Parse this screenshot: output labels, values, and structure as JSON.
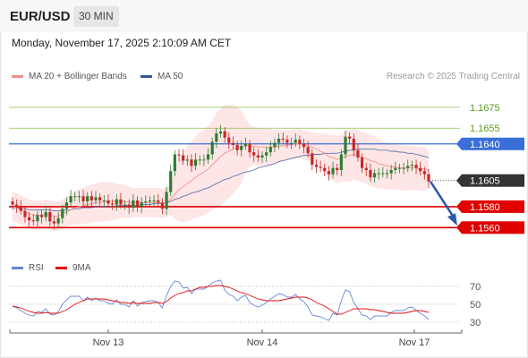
{
  "header": {
    "symbol": "EUR/USD",
    "timeframe": "30 MIN"
  },
  "datetime": "Monday, November 17, 2025 2:10:09 AM CET",
  "legend": {
    "items": [
      {
        "label": "MA 20 + Bollinger Bands",
        "color": "#f28e8e"
      },
      {
        "label": "MA 50",
        "color": "#34569e"
      }
    ],
    "rsi_items": [
      {
        "label": "RSI",
        "color": "#6a87d6"
      },
      {
        "label": "9MA",
        "color": "#e01010"
      }
    ]
  },
  "research": "Research © 2025 Trading Central",
  "colors": {
    "up": "#2e7d32",
    "down": "#c62828",
    "resistance": "#8bc34a",
    "pivot": "#3a6fd8",
    "support": "#e00000",
    "current": "#333333",
    "arrow": "#2b5aa8",
    "band": "#fdd9d9"
  },
  "chart_data": [
    {
      "type": "candlestick",
      "price_range": [
        1.1538,
        1.1692
      ],
      "x_labels": [
        "Nov 13",
        "Nov 14",
        "Nov 17"
      ],
      "levels": [
        {
          "value": "1.1675",
          "kind": "resistance"
        },
        {
          "value": "1.1655",
          "kind": "resistance"
        },
        {
          "value": "1.1640",
          "kind": "pivot"
        },
        {
          "value": "1.1605",
          "kind": "current"
        },
        {
          "value": "1.1580",
          "kind": "support"
        },
        {
          "value": "1.1560",
          "kind": "support"
        }
      ],
      "forecast_arrow": {
        "from": 1.1604,
        "to": 1.156
      },
      "close": [
        1.1582,
        1.158,
        1.1576,
        1.157,
        1.1567,
        1.1566,
        1.1572,
        1.157,
        1.1575,
        1.1566,
        1.1564,
        1.1569,
        1.1578,
        1.1584,
        1.159,
        1.159,
        1.159,
        1.1585,
        1.159,
        1.1586,
        1.1589,
        1.1586,
        1.1586,
        1.1583,
        1.1582,
        1.1587,
        1.1582,
        1.1582,
        1.1579,
        1.1586,
        1.158,
        1.1584,
        1.1585,
        1.1586,
        1.1586,
        1.1584,
        1.1578,
        1.1594,
        1.1614,
        1.163,
        1.1629,
        1.1624,
        1.1625,
        1.1619,
        1.1625,
        1.1625,
        1.1625,
        1.163,
        1.1642,
        1.165,
        1.1652,
        1.1646,
        1.1641,
        1.1639,
        1.1634,
        1.1638,
        1.164,
        1.1632,
        1.1629,
        1.1627,
        1.1629,
        1.1632,
        1.1637,
        1.1641,
        1.1645,
        1.1644,
        1.1641,
        1.1641,
        1.1644,
        1.164,
        1.1637,
        1.1631,
        1.162,
        1.1618,
        1.1617,
        1.1614,
        1.1611,
        1.1617,
        1.1615,
        1.163,
        1.1647,
        1.1645,
        1.1634,
        1.1627,
        1.1617,
        1.1615,
        1.1608,
        1.1612,
        1.1612,
        1.1612,
        1.1612,
        1.1615,
        1.1617,
        1.1617,
        1.1617,
        1.1619,
        1.162,
        1.1617,
        1.1614,
        1.1611,
        1.1604
      ],
      "ma20": [
        1.158,
        1.1579,
        1.1577,
        1.1575,
        1.1573,
        1.1572,
        1.1572,
        1.1572,
        1.1573,
        1.1572,
        1.1571,
        1.1571,
        1.1573,
        1.1575,
        1.1577,
        1.1579,
        1.158,
        1.1581,
        1.1582,
        1.1583,
        1.1584,
        1.1584,
        1.1585,
        1.1585,
        1.1585,
        1.1585,
        1.1585,
        1.1585,
        1.1584,
        1.1584,
        1.1584,
        1.1584,
        1.1584,
        1.1584,
        1.1584,
        1.1584,
        1.1583,
        1.1584,
        1.1587,
        1.1592,
        1.1596,
        1.1599,
        1.1602,
        1.1605,
        1.1608,
        1.1611,
        1.1613,
        1.1616,
        1.162,
        1.1624,
        1.1628,
        1.1631,
        1.1633,
        1.1635,
        1.1636,
        1.1637,
        1.1638,
        1.1638,
        1.1638,
        1.1637,
        1.1637,
        1.1637,
        1.1637,
        1.1637,
        1.1638,
        1.1638,
        1.1639,
        1.1639,
        1.164,
        1.164,
        1.1639,
        1.1638,
        1.1637,
        1.1635,
        1.1633,
        1.1631,
        1.1628,
        1.1627,
        1.1625,
        1.1626,
        1.1628,
        1.1629,
        1.163,
        1.1629,
        1.1627,
        1.1626,
        1.1624,
        1.1623,
        1.1621,
        1.162,
        1.1619,
        1.1618,
        1.1618,
        1.1617,
        1.1617,
        1.1617,
        1.1617,
        1.1617,
        1.1616,
        1.1616,
        1.1615
      ],
      "ma50": [
        1.1579,
        1.1579,
        1.1578,
        1.1578,
        1.1577,
        1.1577,
        1.1577,
        1.1577,
        1.1577,
        1.1577,
        1.1576,
        1.1576,
        1.1576,
        1.1577,
        1.1577,
        1.1578,
        1.1578,
        1.1579,
        1.1579,
        1.1579,
        1.158,
        1.158,
        1.158,
        1.158,
        1.158,
        1.1581,
        1.1581,
        1.1581,
        1.1581,
        1.1581,
        1.1581,
        1.1582,
        1.1582,
        1.1582,
        1.1583,
        1.1583,
        1.1583,
        1.1584,
        1.1585,
        1.1587,
        1.1588,
        1.159,
        1.1591,
        1.1593,
        1.1594,
        1.1595,
        1.1597,
        1.1598,
        1.16,
        1.1602,
        1.1604,
        1.1606,
        1.1607,
        1.1609,
        1.161,
        1.1612,
        1.1613,
        1.1614,
        1.1615,
        1.1617,
        1.1618,
        1.1619,
        1.162,
        1.1621,
        1.1623,
        1.1624,
        1.1625,
        1.1626,
        1.1627,
        1.1628,
        1.1629,
        1.1629,
        1.163,
        1.163,
        1.163,
        1.1631,
        1.1631,
        1.1631,
        1.1631,
        1.1632,
        1.1633,
        1.1634,
        1.1634,
        1.1635,
        1.1635,
        1.1635,
        1.1635,
        1.1635,
        1.1634,
        1.1634,
        1.1634,
        1.1633,
        1.1633,
        1.1632,
        1.1632,
        1.1631,
        1.1631,
        1.163,
        1.1629,
        1.1628,
        1.1627
      ]
    },
    {
      "type": "line",
      "y_ticks": [
        "70",
        "50",
        "30"
      ],
      "y_range": [
        20,
        80
      ],
      "series": [
        {
          "name": "RSI",
          "values": [
            48,
            46,
            43,
            40,
            38,
            37,
            42,
            41,
            45,
            39,
            38,
            42,
            50,
            55,
            59,
            59,
            59,
            54,
            58,
            54,
            57,
            54,
            54,
            51,
            50,
            55,
            50,
            50,
            47,
            54,
            48,
            52,
            53,
            54,
            54,
            52,
            46,
            60,
            70,
            76,
            75,
            68,
            69,
            62,
            67,
            67,
            67,
            70,
            74,
            76,
            77,
            66,
            61,
            59,
            54,
            58,
            60,
            52,
            49,
            47,
            49,
            52,
            56,
            59,
            62,
            61,
            58,
            58,
            61,
            56,
            53,
            47,
            38,
            37,
            36,
            34,
            32,
            40,
            38,
            54,
            66,
            64,
            52,
            45,
            38,
            37,
            33,
            37,
            37,
            37,
            37,
            41,
            43,
            43,
            43,
            46,
            47,
            43,
            40,
            37,
            33
          ]
        },
        {
          "name": "9MA",
          "values": [
            48,
            47,
            46,
            44,
            42,
            41,
            40,
            40,
            41,
            40,
            40,
            40,
            42,
            44,
            47,
            50,
            52,
            54,
            56,
            56,
            56,
            56,
            56,
            55,
            54,
            53,
            52,
            52,
            51,
            52,
            51,
            51,
            51,
            51,
            52,
            52,
            51,
            53,
            57,
            60,
            62,
            63,
            65,
            65,
            67,
            69,
            69,
            70,
            70,
            71,
            71,
            70,
            69,
            67,
            65,
            63,
            62,
            60,
            58,
            56,
            55,
            54,
            54,
            54,
            54,
            55,
            56,
            57,
            58,
            58,
            58,
            57,
            55,
            52,
            50,
            48,
            45,
            42,
            39,
            39,
            41,
            43,
            45,
            45,
            45,
            45,
            44,
            44,
            43,
            42,
            41,
            40,
            40,
            40,
            40,
            41,
            42,
            43,
            43,
            42,
            41
          ]
        }
      ]
    }
  ]
}
